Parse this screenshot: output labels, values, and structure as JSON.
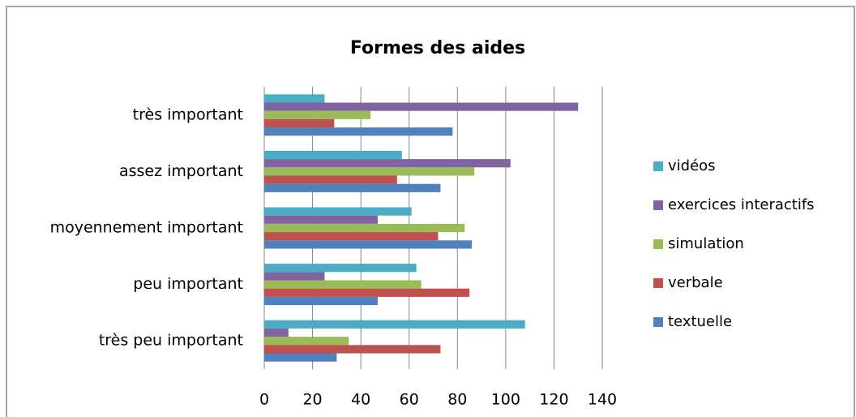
{
  "chart_data": {
    "type": "barh",
    "title": "Formes des aides",
    "categories": [
      "très important",
      "assez important",
      "moyennement important",
      "peu important",
      "très peu important"
    ],
    "series": [
      {
        "name": "vidéos",
        "color": "#4bacc6",
        "values": [
          25,
          57,
          61,
          63,
          108
        ]
      },
      {
        "name": "exercices interactifs",
        "color": "#8064a2",
        "values": [
          130,
          102,
          47,
          25,
          10
        ]
      },
      {
        "name": "simulation",
        "color": "#9bbb59",
        "values": [
          44,
          87,
          83,
          65,
          35
        ]
      },
      {
        "name": "verbale",
        "color": "#c0504d",
        "values": [
          29,
          55,
          72,
          85,
          73
        ]
      },
      {
        "name": "textuelle",
        "color": "#4f81bd",
        "values": [
          78,
          73,
          86,
          47,
          30
        ]
      }
    ],
    "xlim": [
      0,
      140
    ],
    "xticks": [
      0,
      20,
      40,
      60,
      80,
      100,
      120,
      140
    ],
    "grid": true,
    "legend": "right"
  }
}
